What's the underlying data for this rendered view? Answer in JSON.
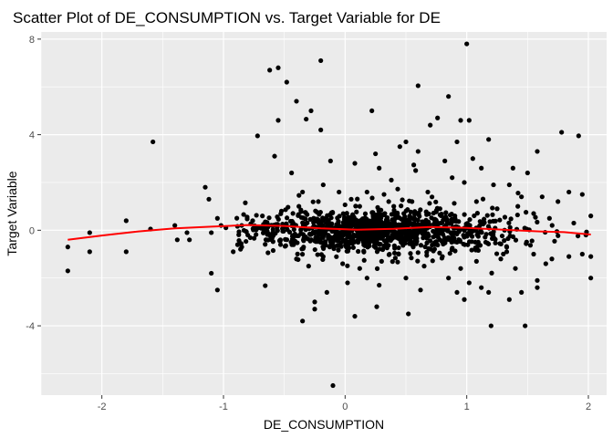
{
  "chart_data": {
    "type": "scatter",
    "title": "Scatter Plot of DE_CONSUMPTION vs. Target Variable for DE",
    "xlabel": "DE_CONSUMPTION",
    "ylabel": "Target Variable",
    "xlim": [
      -2.5,
      2.15
    ],
    "ylim": [
      -6.9,
      8.3
    ],
    "x_ticks": [
      -2,
      -1,
      0,
      1,
      2
    ],
    "x_tick_labels": [
      "-2",
      "-1",
      "0",
      "1",
      "2"
    ],
    "y_ticks": [
      -4,
      0,
      4,
      8
    ],
    "y_tick_labels": [
      "-4",
      "0",
      "4",
      "8"
    ],
    "grid": true,
    "background": "#ebebeb",
    "grid_color": "#ffffff",
    "point_color": "#000000",
    "smooth_color": "#ff0000",
    "points": [
      [
        -2.28,
        -0.7
      ],
      [
        -2.28,
        -1.7
      ],
      [
        -2.1,
        -0.1
      ],
      [
        -2.1,
        -0.9
      ],
      [
        -1.8,
        0.4
      ],
      [
        -1.8,
        -0.9
      ],
      [
        -1.6,
        0.05
      ],
      [
        -1.58,
        3.7
      ],
      [
        -1.4,
        0.2
      ],
      [
        -1.38,
        -0.4
      ],
      [
        -1.3,
        -0.1
      ],
      [
        -1.28,
        -0.4
      ],
      [
        -1.12,
        1.3
      ],
      [
        -1.1,
        -0.1
      ],
      [
        -1.05,
        0.5
      ],
      [
        -1.02,
        0.2
      ],
      [
        -0.98,
        0.1
      ],
      [
        -0.92,
        -0.9
      ],
      [
        -1.1,
        -1.8
      ],
      [
        -1.05,
        -2.5
      ],
      [
        -1.15,
        1.8
      ],
      [
        -0.85,
        0.2
      ],
      [
        -0.8,
        -0.2
      ],
      [
        -0.76,
        0.4
      ],
      [
        -0.72,
        3.95
      ],
      [
        -0.68,
        0.6
      ],
      [
        -0.62,
        6.7
      ],
      [
        -0.55,
        6.8
      ],
      [
        -0.55,
        4.6
      ],
      [
        -0.58,
        3.1
      ],
      [
        -0.48,
        6.2
      ],
      [
        -0.44,
        2.4
      ],
      [
        -0.4,
        5.4
      ],
      [
        -0.32,
        4.65
      ],
      [
        -0.28,
        5.0
      ],
      [
        -0.2,
        7.1
      ],
      [
        -0.2,
        4.2
      ],
      [
        -0.12,
        2.9
      ],
      [
        0.08,
        2.8
      ],
      [
        0.22,
        5.0
      ],
      [
        0.25,
        3.2
      ],
      [
        0.28,
        2.6
      ],
      [
        0.38,
        2.1
      ],
      [
        0.45,
        3.5
      ],
      [
        0.5,
        3.7
      ],
      [
        0.58,
        2.5
      ],
      [
        0.6,
        3.3
      ],
      [
        0.6,
        6.05
      ],
      [
        0.7,
        4.4
      ],
      [
        0.76,
        4.7
      ],
      [
        0.82,
        2.9
      ],
      [
        0.88,
        2.2
      ],
      [
        0.85,
        5.6
      ],
      [
        0.92,
        3.7
      ],
      [
        0.95,
        4.6
      ],
      [
        0.98,
        2.0
      ],
      [
        1.0,
        7.8
      ],
      [
        1.02,
        4.6
      ],
      [
        1.05,
        3.0
      ],
      [
        1.12,
        2.6
      ],
      [
        1.18,
        3.8
      ],
      [
        1.22,
        1.9
      ],
      [
        1.35,
        1.9
      ],
      [
        1.38,
        2.6
      ],
      [
        1.45,
        1.4
      ],
      [
        1.5,
        2.4
      ],
      [
        1.58,
        3.3
      ],
      [
        1.62,
        1.4
      ],
      [
        1.75,
        1.2
      ],
      [
        1.78,
        4.1
      ],
      [
        1.84,
        1.6
      ],
      [
        1.92,
        3.95
      ],
      [
        1.95,
        1.5
      ],
      [
        -0.35,
        -3.8
      ],
      [
        -0.25,
        -3.0
      ],
      [
        -0.25,
        -3.3
      ],
      [
        -0.1,
        -6.5
      ],
      [
        -0.15,
        -2.6
      ],
      [
        0.02,
        -2.2
      ],
      [
        0.08,
        -3.6
      ],
      [
        0.18,
        -2.0
      ],
      [
        0.26,
        -3.2
      ],
      [
        0.28,
        -2.3
      ],
      [
        0.5,
        -2.0
      ],
      [
        0.52,
        -3.5
      ],
      [
        0.62,
        -2.5
      ],
      [
        0.85,
        -2.0
      ],
      [
        0.92,
        -2.6
      ],
      [
        0.98,
        -2.9
      ],
      [
        1.02,
        -2.2
      ],
      [
        1.12,
        -2.4
      ],
      [
        1.18,
        -2.6
      ],
      [
        1.2,
        -4.0
      ],
      [
        1.35,
        -2.9
      ],
      [
        1.48,
        -4.0
      ],
      [
        1.45,
        -2.6
      ],
      [
        1.58,
        -2.1
      ],
      [
        1.58,
        -2.4
      ],
      [
        1.7,
        -1.2
      ],
      [
        1.84,
        -1.1
      ],
      [
        1.95,
        -1.0
      ],
      [
        2.02,
        -2.0
      ],
      [
        2.02,
        -1.1
      ],
      [
        2.02,
        0.6
      ],
      [
        1.98,
        -0.2
      ],
      [
        1.88,
        0.3
      ],
      [
        -0.35,
        1.6
      ],
      [
        -0.38,
        1.0
      ],
      [
        -0.22,
        1.2
      ],
      [
        -0.18,
        1.9
      ],
      [
        -0.05,
        1.6
      ],
      [
        0.05,
        1.3
      ],
      [
        0.12,
        1.0
      ],
      [
        0.18,
        1.6
      ],
      [
        0.32,
        1.5
      ],
      [
        0.4,
        1.0
      ],
      [
        0.55,
        1.2
      ],
      [
        0.68,
        1.6
      ],
      [
        0.78,
        0.9
      ],
      [
        1.08,
        1.2
      ],
      [
        1.25,
        0.9
      ],
      [
        1.42,
        1.0
      ],
      [
        1.55,
        0.7
      ],
      [
        1.68,
        0.5
      ],
      [
        -0.4,
        -1.2
      ],
      [
        -0.3,
        -1.5
      ],
      [
        -0.18,
        -1.1
      ],
      [
        -0.02,
        -1.4
      ],
      [
        0.12,
        -1.6
      ],
      [
        0.3,
        -1.3
      ],
      [
        0.44,
        -1.0
      ],
      [
        0.65,
        -1.5
      ],
      [
        0.8,
        -1.1
      ],
      [
        0.95,
        -1.6
      ],
      [
        1.08,
        -1.3
      ],
      [
        1.28,
        -1.2
      ],
      [
        1.4,
        -1.6
      ],
      [
        1.55,
        -1.0
      ],
      [
        1.65,
        -1.4
      ]
    ],
    "smooth_line": [
      [
        -2.28,
        -0.4
      ],
      [
        -2.0,
        -0.22
      ],
      [
        -1.7,
        -0.05
      ],
      [
        -1.4,
        0.08
      ],
      [
        -1.1,
        0.15
      ],
      [
        -0.8,
        0.22
      ],
      [
        -0.5,
        0.18
      ],
      [
        -0.2,
        0.08
      ],
      [
        0.1,
        0.02
      ],
      [
        0.4,
        0.06
      ],
      [
        0.7,
        0.14
      ],
      [
        1.0,
        0.1
      ],
      [
        1.3,
        0.02
      ],
      [
        1.6,
        -0.05
      ],
      [
        1.8,
        -0.08
      ],
      [
        2.02,
        -0.18
      ]
    ]
  }
}
